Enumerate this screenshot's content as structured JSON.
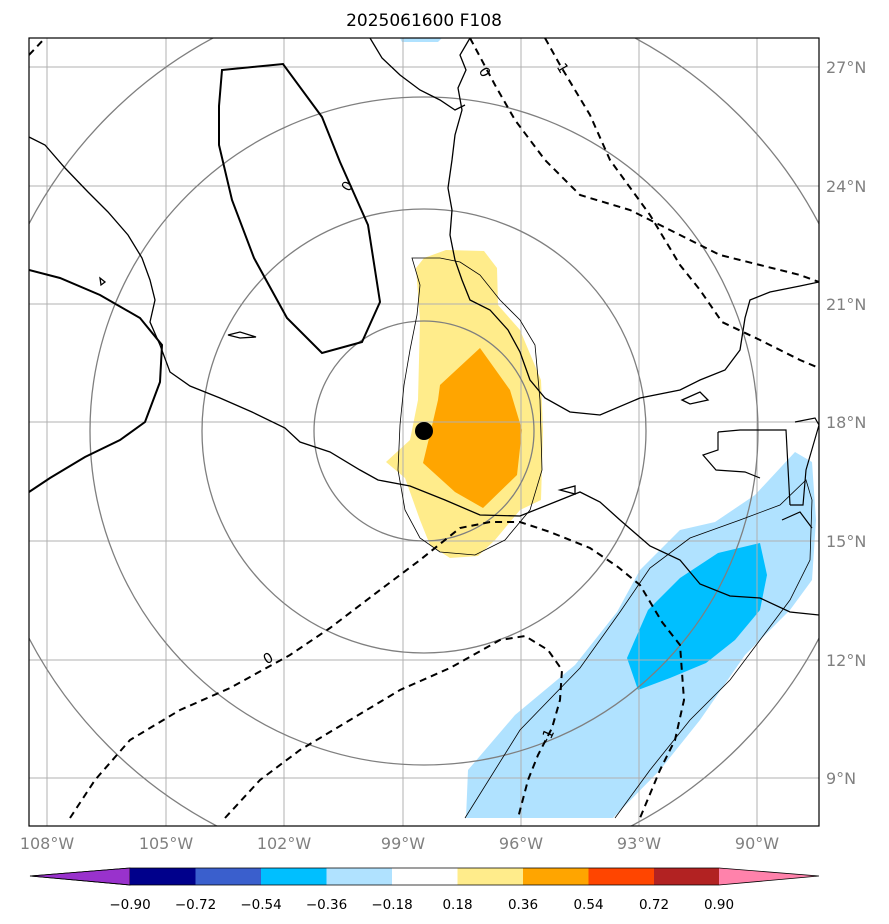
{
  "title": "2025061600 F108",
  "map": {
    "projection": "lat-lon",
    "lon_ticks": [
      "108°W",
      "105°W",
      "102°W",
      "99°W",
      "96°W",
      "93°W",
      "90°W"
    ],
    "lat_ticks": [
      "27°N",
      "24°N",
      "21°N",
      "18°N",
      "15°N",
      "12°N",
      "9°N"
    ],
    "gridlines": true,
    "storm_center": {
      "lon": -98.6,
      "lat": 17.8
    },
    "range_rings": "concentric circles around storm center",
    "contour_labels": [
      "0",
      "0",
      "0",
      "1",
      "-1"
    ]
  },
  "colorbar": {
    "ticks": [
      "−0.90",
      "−0.72",
      "−0.54",
      "−0.36",
      "−0.18",
      "0.18",
      "0.36",
      "0.54",
      "0.72",
      "0.90"
    ],
    "colors": [
      "#9932CC",
      "#00008B",
      "#3A5FCD",
      "#00BFFF",
      "#B0E2FF",
      "#FFFFFF",
      "#FFEC8B",
      "#FFA500",
      "#FF4500",
      "#B22222",
      "#FF82AB"
    ]
  }
}
